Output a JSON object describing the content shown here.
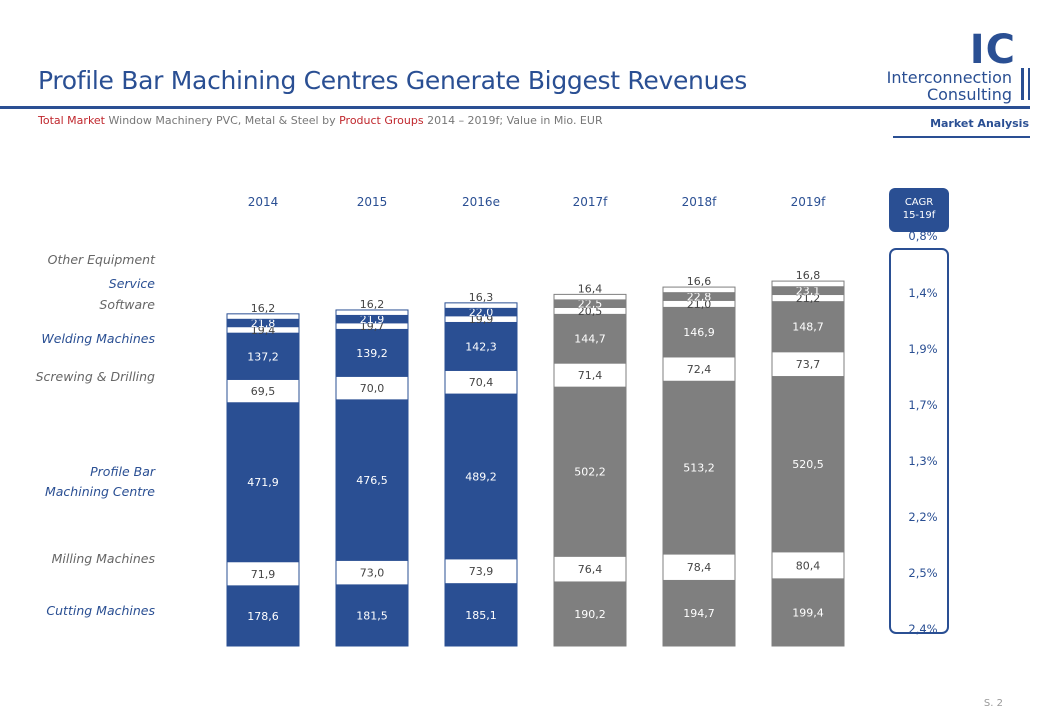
{
  "header": {
    "title": "Profile Bar Machining Centres Generate Biggest Revenues",
    "subtitle_parts": [
      {
        "text": "Total Market",
        "red": true
      },
      {
        "text": " Window Machinery  PVC, Metal & Steel by ",
        "red": false
      },
      {
        "text": "Product Groups",
        "red": true
      },
      {
        "text": " 2014  – 2019f;  Value in Mio. EUR",
        "red": false
      }
    ],
    "section": "Market Analysis",
    "page": "S. 2"
  },
  "logo": {
    "mark": "IC",
    "line1": "Interconnection",
    "line2": "Consulting"
  },
  "colors": {
    "brand": "#2a4f93",
    "forecast": "#7f7f7f",
    "red": "#c0272d",
    "label_blue": "#2a4f93",
    "label_gray": "#666666"
  },
  "chart_data": {
    "type": "bar",
    "stacked": true,
    "categories": [
      "2014",
      "2015",
      "2016e",
      "2017f",
      "2018f",
      "2019f"
    ],
    "forecast_from_index": 3,
    "series": [
      {
        "name": "Cutting Machines",
        "values": [
          178.6,
          181.5,
          185.1,
          190.2,
          194.7,
          199.4
        ],
        "labels": [
          "178,6",
          "181,5",
          "185,1",
          "190,2",
          "194,7",
          "199,4"
        ],
        "fill": "dark",
        "label_color": "blue"
      },
      {
        "name": "Milling Machines",
        "values": [
          71.9,
          73.0,
          73.9,
          76.4,
          78.4,
          80.4
        ],
        "labels": [
          "71,9",
          "73,0",
          "73,9",
          "76,4",
          "78,4",
          "80,4"
        ],
        "fill": "light",
        "label_color": "gray"
      },
      {
        "name": "Profile Bar Machining Centre",
        "legend_lines": [
          "Profile Bar",
          "Machining Centre"
        ],
        "values": [
          471.9,
          476.5,
          489.2,
          502.2,
          513.2,
          520.5
        ],
        "labels": [
          "471,9",
          "476,5",
          "489,2",
          "502,2",
          "513,2",
          "520,5"
        ],
        "fill": "dark",
        "label_color": "blue"
      },
      {
        "name": "Screwing & Drilling",
        "values": [
          69.5,
          70.0,
          70.4,
          71.4,
          72.4,
          73.7
        ],
        "labels": [
          "69,5",
          "70,0",
          "70,4",
          "71,4",
          "72,4",
          "73,7"
        ],
        "fill": "light",
        "label_color": "gray"
      },
      {
        "name": "Welding Machines",
        "values": [
          137.2,
          139.2,
          142.3,
          144.7,
          146.9,
          148.7
        ],
        "labels": [
          "137,2",
          "139,2",
          "142,3",
          "144,7",
          "146,9",
          "148,7"
        ],
        "fill": "dark",
        "label_color": "blue"
      },
      {
        "name": "Software",
        "values": [
          19.4,
          19.7,
          19.9,
          20.5,
          21.0,
          21.2
        ],
        "labels": [
          "19,4",
          "19,7",
          "19,9",
          "20,5",
          "21,0",
          "21,2"
        ],
        "fill": "light",
        "label_color": "gray"
      },
      {
        "name": "Service",
        "values": [
          21.8,
          21.9,
          22.0,
          22.5,
          22.8,
          23.1
        ],
        "labels": [
          "21,8",
          "21,9",
          "22,0",
          "22,5",
          "22,8",
          "23,1"
        ],
        "fill": "dark",
        "label_color": "blue"
      },
      {
        "name": "Other Equipment",
        "values": [
          16.2,
          16.2,
          16.3,
          16.4,
          16.6,
          16.8
        ],
        "labels": [
          "16,2",
          "16,2",
          "16,3",
          "16,4",
          "16,6",
          "16,8"
        ],
        "fill": "light",
        "label_color": "gray"
      }
    ],
    "cagr": {
      "header": [
        "CAGR",
        "15-19f"
      ],
      "values": [
        "2,4%",
        "2,5%",
        "2,2%",
        "1,3%",
        "1,7%",
        "1,9%",
        "1,4%",
        "0,8%"
      ]
    }
  }
}
